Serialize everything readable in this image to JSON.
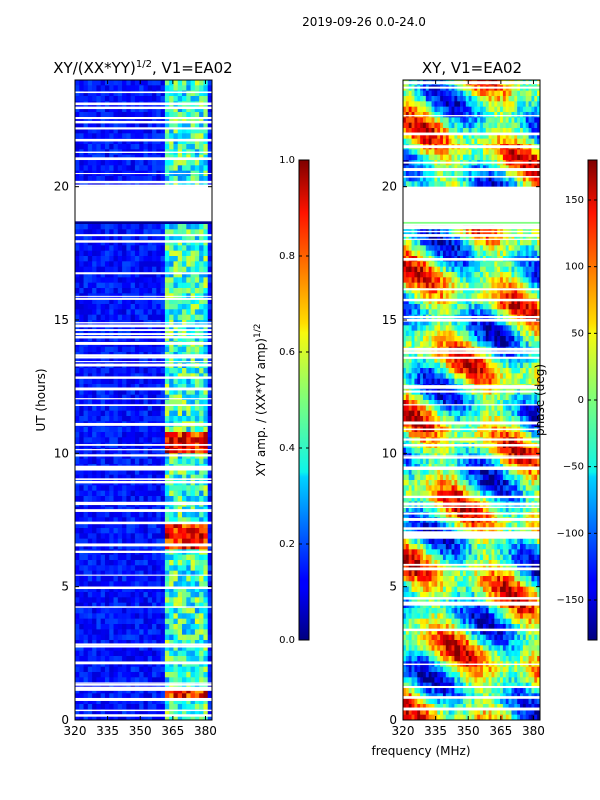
{
  "suptitle": "2019-09-26 0.0-24.0",
  "shared_xlabel": "frequency (MHz)",
  "chart_data": [
    {
      "type": "heatmap",
      "title_main": "XY/(XX*YY)",
      "title_sup": "1/2",
      "title_tail": ", V1=EA02",
      "xlabel": "",
      "ylabel": "UT (hours)",
      "xlim": [
        320,
        383
      ],
      "ylim": [
        0,
        24
      ],
      "xticks": [
        320,
        335,
        350,
        365,
        380
      ],
      "yticks": [
        0,
        5,
        10,
        15,
        20
      ],
      "cmap": "jet",
      "colorbar": {
        "label_main": "XY amp. / (XX*YY amp)",
        "label_sup": "1/2",
        "range": [
          0.0,
          1.0
        ],
        "ticks": [
          "0.0",
          "0.2",
          "0.4",
          "0.6",
          "0.8",
          "1.0"
        ],
        "tick_values": [
          0.0,
          0.2,
          0.4,
          0.6,
          0.8,
          1.0
        ]
      },
      "data_gap_hours": [
        18.7,
        20.0
      ],
      "active_band_mhz": [
        362,
        381
      ],
      "high_amp_periods_hours": [
        [
          6.5,
          7.4
        ],
        [
          9.9,
          10.8
        ],
        [
          0.8,
          1.2
        ]
      ]
    },
    {
      "type": "heatmap",
      "title": "XY, V1=EA02",
      "xlabel": "",
      "ylabel": "phase (deg)",
      "xlim": [
        320,
        383
      ],
      "ylim": [
        0,
        24
      ],
      "xticks": [
        320,
        335,
        350,
        365,
        380
      ],
      "yticks": [
        0,
        5,
        10,
        15,
        20
      ],
      "cmap": "jet",
      "colorbar": {
        "label": "phase (deg)",
        "range": [
          -180,
          180
        ],
        "ticks": [
          "150",
          "100",
          "50",
          "0",
          "−50",
          "−100",
          "−150"
        ],
        "tick_values": [
          150,
          100,
          50,
          0,
          -50,
          -100,
          -150
        ]
      },
      "data_gap_hours": [
        18.7,
        20.0
      ]
    }
  ]
}
